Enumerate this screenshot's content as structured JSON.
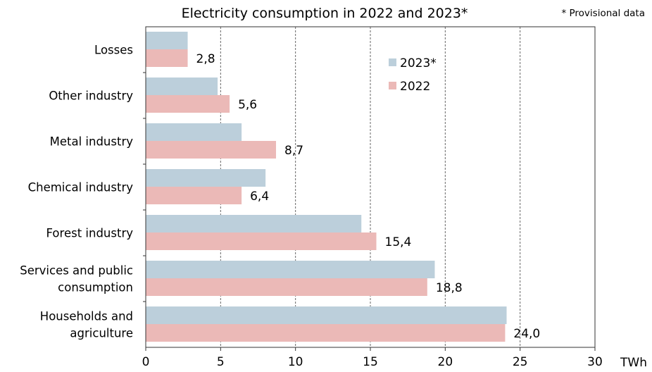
{
  "chart_data": {
    "type": "bar",
    "orientation": "horizontal",
    "title": "Electricity consumption in 2022 and 2023*",
    "note": "* Provisional data",
    "xlabel": "TWh",
    "ylabel": "",
    "xlim": [
      0,
      30
    ],
    "xticks": [
      "0",
      "5",
      "10",
      "15",
      "20",
      "25",
      "30"
    ],
    "grid": "vertical dashed",
    "legend_position": "top-right",
    "categories": [
      [
        "Losses"
      ],
      [
        "Other industry"
      ],
      [
        "Metal industry"
      ],
      [
        "Chemical industry"
      ],
      [
        "Forest industry"
      ],
      [
        "Services and public",
        "consumption"
      ],
      [
        "Households and",
        "agriculture"
      ]
    ],
    "series": [
      {
        "name": "2023*",
        "color": "#bccfdb",
        "values": [
          2.8,
          4.8,
          6.4,
          8.0,
          14.4,
          19.3,
          24.1
        ]
      },
      {
        "name": "2022",
        "color": "#ebb9b7",
        "values": [
          2.8,
          5.6,
          8.7,
          6.4,
          15.4,
          18.8,
          24.0
        ]
      }
    ],
    "data_labels": [
      "2,8",
      "5,6",
      "8,7",
      "6,4",
      "15,4",
      "18,8",
      "24,0"
    ],
    "data_labels_series": "2022"
  }
}
